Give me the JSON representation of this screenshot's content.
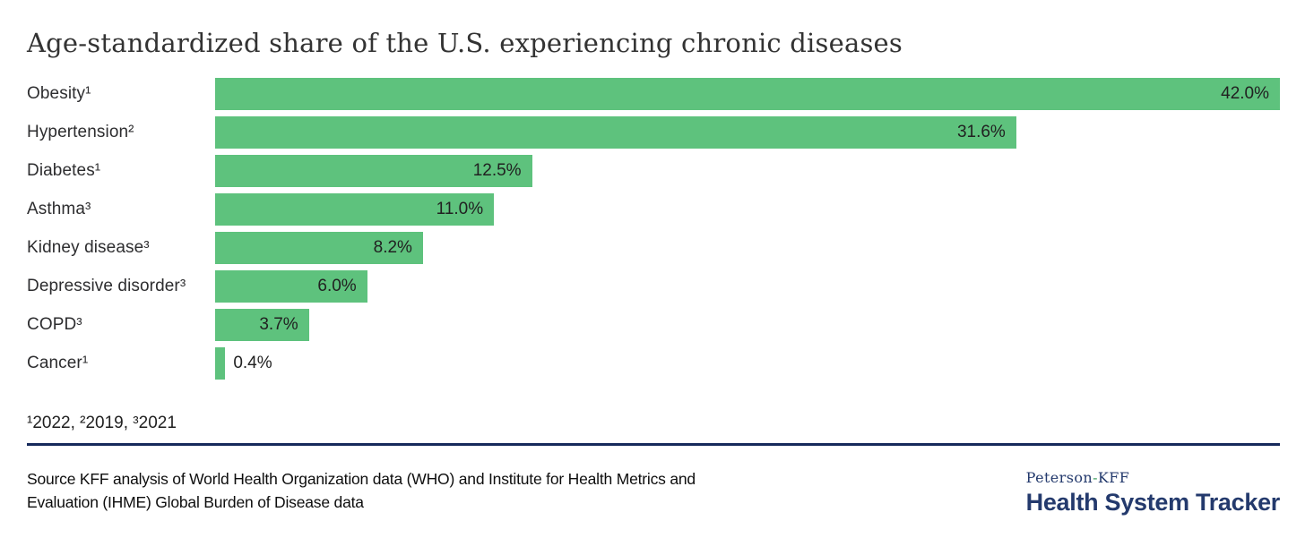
{
  "title": "Age-standardized share of the U.S. experiencing chronic diseases",
  "chart_data": {
    "type": "bar",
    "orientation": "horizontal",
    "title": "Age-standardized share of the U.S. experiencing chronic diseases",
    "categories": [
      "Obesity¹",
      "Hypertension²",
      "Diabetes¹",
      "Asthma³",
      "Kidney disease³",
      "Depressive disorder³",
      "COPD³",
      "Cancer¹"
    ],
    "values": [
      42.0,
      31.6,
      12.5,
      11.0,
      8.2,
      6.0,
      3.7,
      0.4
    ],
    "value_labels": [
      "42.0%",
      "31.6%",
      "12.5%",
      "11.0%",
      "8.2%",
      "6.0%",
      "3.7%",
      "0.4%"
    ],
    "xlim": [
      0,
      42
    ],
    "xlabel": "",
    "ylabel": "",
    "grid": false,
    "legend": false,
    "bar_color": "#5ec27d"
  },
  "footnote": "¹2022, ²2019, ³2021",
  "source": {
    "line1": "Source KFF analysis of World Health Organization data (WHO) and Institute for Health Metrics and",
    "line2": "Evaluation (IHME) Global Burden of Disease data"
  },
  "branding": {
    "name_part1": "Peterson",
    "name_dash": "-",
    "name_part2": "KFF",
    "wordmark": "Health System Tracker"
  },
  "colors": {
    "bar_green": "#5ec27d",
    "divider_navy": "#16295b",
    "brand_navy": "#243a6d",
    "dash_green": "#3f9e5f",
    "title_gray": "#333333"
  }
}
